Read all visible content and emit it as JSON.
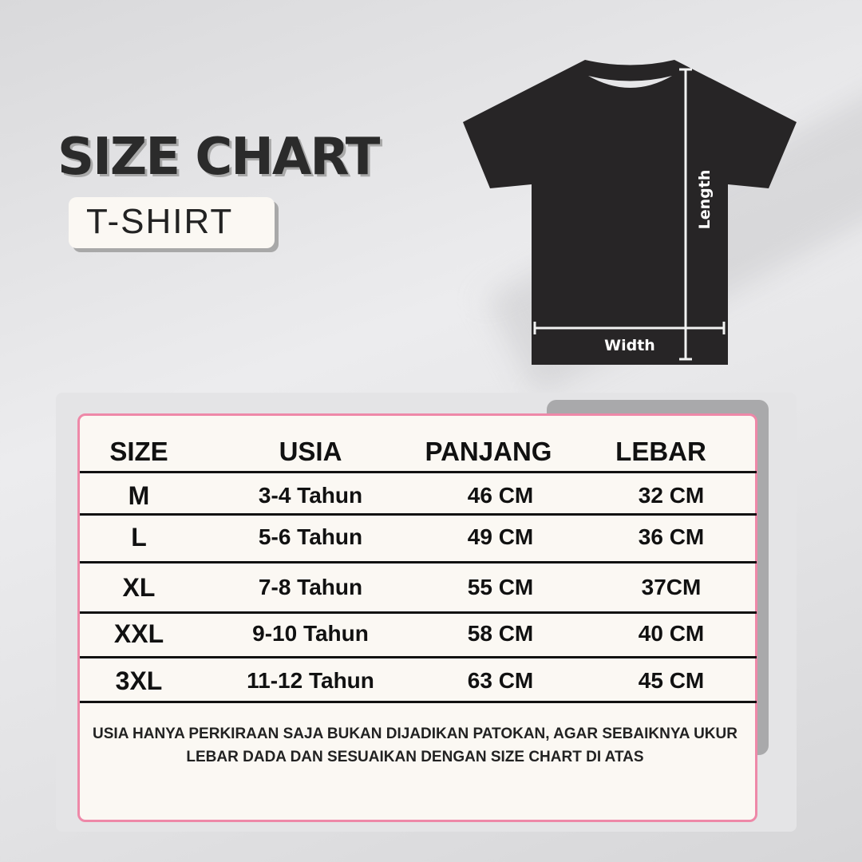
{
  "header": {
    "title": "SIZE CHART",
    "subtitle": "T-SHIRT"
  },
  "diagram": {
    "length_label": "Length",
    "width_label": "Width",
    "shirt_color": "#272526"
  },
  "table": {
    "columns": [
      "SIZE",
      "USIA",
      "PANJANG",
      "LEBAR"
    ],
    "rows": [
      [
        "M",
        "3-4 Tahun",
        "46 CM",
        "32 CM"
      ],
      [
        "L",
        "5-6 Tahun",
        "49 CM",
        "36 CM"
      ],
      [
        "XL",
        "7-8 Tahun",
        "55 CM",
        "37CM"
      ],
      [
        "XXL",
        "9-10 Tahun",
        "58 CM",
        "40 CM"
      ],
      [
        "3XL",
        "11-12 Tahun",
        "63 CM",
        "45 CM"
      ]
    ],
    "border_color": "#ee88a8"
  },
  "note": "USIA HANYA PERKIRAAN SAJA BUKAN DIJADIKAN PATOKAN, AGAR SEBAIKNYA UKUR LEBAR DADA DAN SESUAIKAN DENGAN SIZE CHART DI ATAS"
}
